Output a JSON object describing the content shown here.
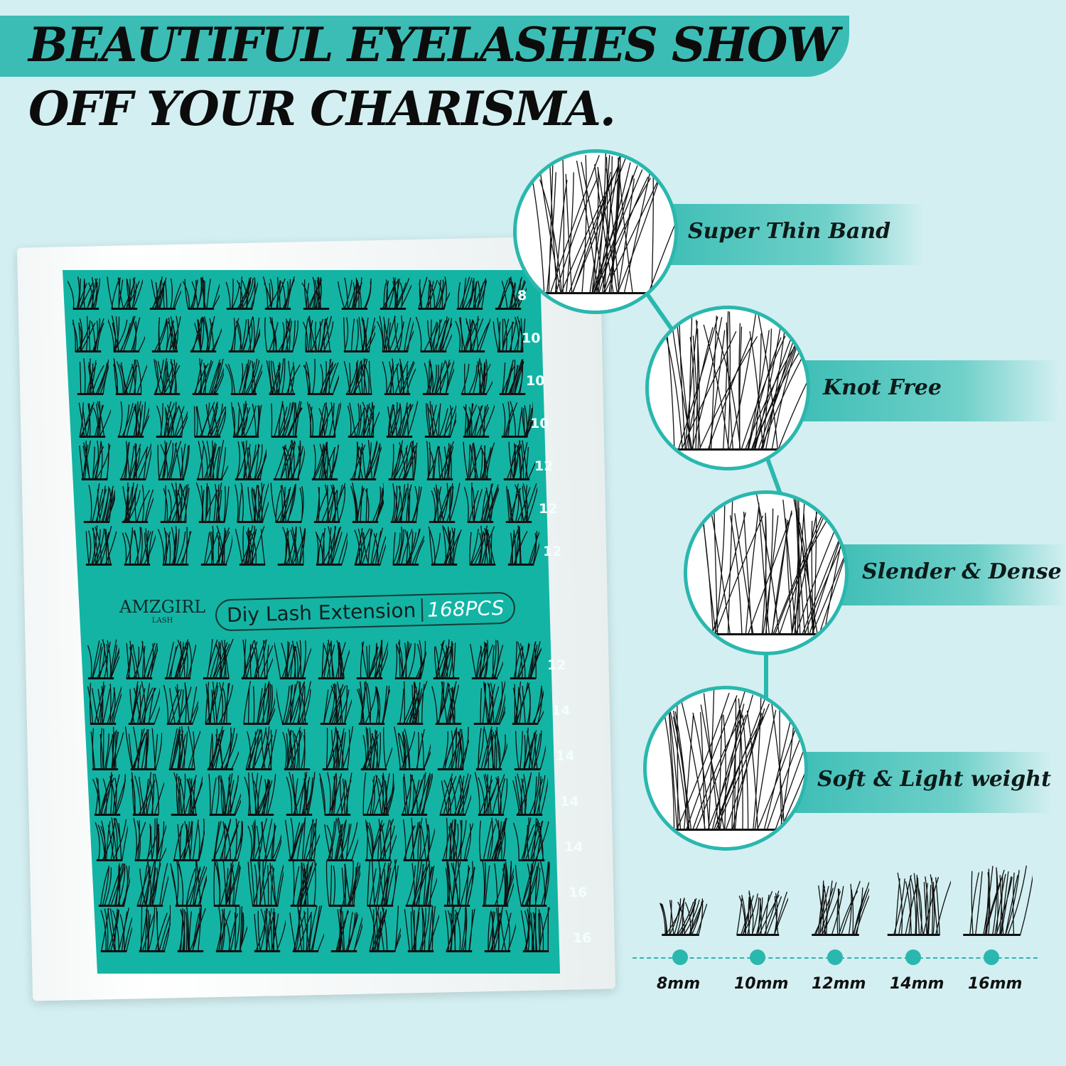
{
  "headline": {
    "line1": "BEAUTIFUL EYELASHES SHOW",
    "line2": "OFF YOUR CHARISMA."
  },
  "tray": {
    "brand": "AMZGIRL",
    "brand_sub": "LASH",
    "product_label": "Diy Lash Extension",
    "count_label": "168PCS",
    "row_lengths": [
      "8",
      "10",
      "10",
      "10",
      "12",
      "12",
      "12",
      "12",
      "14",
      "14",
      "14",
      "14",
      "16",
      "16"
    ],
    "clusters_per_row": 12,
    "color": "#13b4a4"
  },
  "features": [
    {
      "label": "Super Thin Band"
    },
    {
      "label": "Knot Free"
    },
    {
      "label": "Slender & Dense"
    },
    {
      "label": "Soft & Light weight"
    }
  ],
  "lengths": [
    "8mm",
    "10mm",
    "12mm",
    "14mm",
    "16mm"
  ],
  "colors": {
    "accent": "#2ab7ae",
    "background": "#d3eff1",
    "text": "#0d1a19"
  }
}
